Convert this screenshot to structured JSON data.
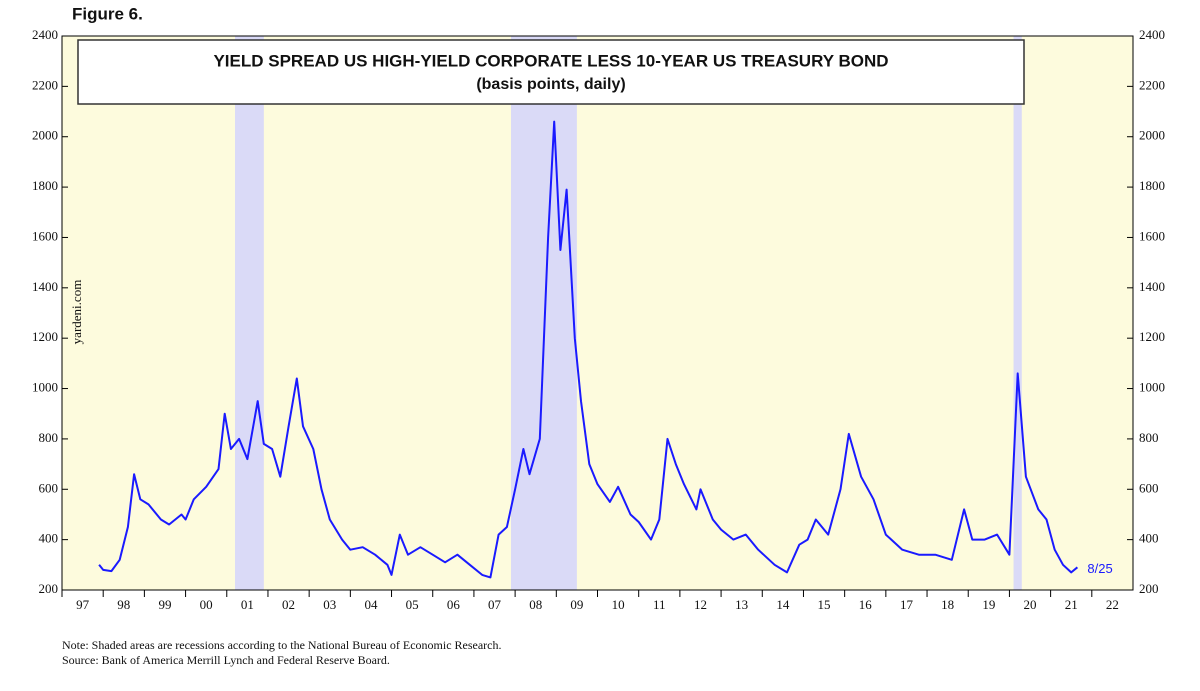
{
  "figure_label": "Figure 6.",
  "chart_data": {
    "type": "line",
    "title": "YIELD SPREAD US HIGH-YIELD CORPORATE LESS 10-YEAR US TREASURY BOND",
    "subtitle": "(basis points, daily)",
    "watermark": "yardeni.com",
    "annotation": "8/25",
    "x": [
      1997.9,
      1998.0,
      1998.2,
      1998.4,
      1998.6,
      1998.75,
      1998.9,
      1999.1,
      1999.4,
      1999.6,
      1999.9,
      2000.0,
      2000.2,
      2000.5,
      2000.8,
      2000.95,
      2001.1,
      2001.3,
      2001.5,
      2001.75,
      2001.9,
      2002.1,
      2002.3,
      2002.5,
      2002.7,
      2002.85,
      2003.1,
      2003.3,
      2003.5,
      2003.8,
      2004.0,
      2004.3,
      2004.6,
      2004.9,
      2005.0,
      2005.2,
      2005.4,
      2005.7,
      2006.0,
      2006.3,
      2006.6,
      2006.9,
      2007.2,
      2007.4,
      2007.6,
      2007.8,
      2008.0,
      2008.2,
      2008.35,
      2008.6,
      2008.8,
      2008.95,
      2009.1,
      2009.25,
      2009.45,
      2009.6,
      2009.8,
      2010.0,
      2010.3,
      2010.5,
      2010.8,
      2011.0,
      2011.3,
      2011.5,
      2011.7,
      2011.9,
      2012.1,
      2012.4,
      2012.5,
      2012.8,
      2013.0,
      2013.3,
      2013.6,
      2013.9,
      2014.3,
      2014.6,
      2014.9,
      2015.1,
      2015.3,
      2015.6,
      2015.9,
      2016.1,
      2016.4,
      2016.7,
      2017.0,
      2017.4,
      2017.8,
      2018.2,
      2018.6,
      2018.9,
      2019.1,
      2019.4,
      2019.7,
      2020.0,
      2020.2,
      2020.4,
      2020.7,
      2020.9,
      2021.1,
      2021.3,
      2021.5,
      2021.65
    ],
    "series": [
      {
        "name": "Yield spread",
        "color": "#1a1aff",
        "values": [
          300,
          280,
          275,
          320,
          450,
          660,
          560,
          540,
          480,
          460,
          500,
          480,
          560,
          610,
          680,
          900,
          760,
          800,
          720,
          950,
          780,
          760,
          650,
          850,
          1040,
          850,
          760,
          600,
          480,
          400,
          360,
          370,
          340,
          300,
          260,
          420,
          340,
          370,
          340,
          310,
          340,
          300,
          260,
          250,
          420,
          450,
          600,
          760,
          660,
          800,
          1600,
          2060,
          1550,
          1790,
          1200,
          950,
          700,
          620,
          550,
          610,
          500,
          470,
          400,
          480,
          800,
          700,
          620,
          520,
          600,
          480,
          440,
          400,
          420,
          360,
          300,
          270,
          380,
          400,
          480,
          420,
          600,
          820,
          650,
          560,
          420,
          360,
          340,
          340,
          320,
          520,
          400,
          400,
          420,
          340,
          1060,
          650,
          520,
          480,
          360,
          300,
          270,
          290
        ]
      }
    ],
    "recessions": [
      [
        2001.2,
        2001.9
      ],
      [
        2007.9,
        2009.5
      ],
      [
        2020.1,
        2020.3
      ]
    ],
    "recession_color": "#dadaf7",
    "background": "#fdfbdd",
    "xlim": [
      1997,
      2023
    ],
    "xticks": [
      {
        "value": 1997,
        "label": "97"
      },
      {
        "value": 1998,
        "label": "98"
      },
      {
        "value": 1999,
        "label": "99"
      },
      {
        "value": 2000,
        "label": "00"
      },
      {
        "value": 2001,
        "label": "01"
      },
      {
        "value": 2002,
        "label": "02"
      },
      {
        "value": 2003,
        "label": "03"
      },
      {
        "value": 2004,
        "label": "04"
      },
      {
        "value": 2005,
        "label": "05"
      },
      {
        "value": 2006,
        "label": "06"
      },
      {
        "value": 2007,
        "label": "07"
      },
      {
        "value": 2008,
        "label": "08"
      },
      {
        "value": 2009,
        "label": "09"
      },
      {
        "value": 2010,
        "label": "10"
      },
      {
        "value": 2011,
        "label": "11"
      },
      {
        "value": 2012,
        "label": "12"
      },
      {
        "value": 2013,
        "label": "13"
      },
      {
        "value": 2014,
        "label": "14"
      },
      {
        "value": 2015,
        "label": "15"
      },
      {
        "value": 2016,
        "label": "16"
      },
      {
        "value": 2017,
        "label": "17"
      },
      {
        "value": 2018,
        "label": "18"
      },
      {
        "value": 2019,
        "label": "19"
      },
      {
        "value": 2020,
        "label": "20"
      },
      {
        "value": 2021,
        "label": "21"
      },
      {
        "value": 2022,
        "label": "22"
      }
    ],
    "ylim": [
      200,
      2400
    ],
    "yticks": [
      200,
      400,
      600,
      800,
      1000,
      1200,
      1400,
      1600,
      1800,
      2000,
      2200,
      2400
    ],
    "notes": [
      "Note: Shaded areas are recessions according to the National Bureau of Economic Research.",
      "Source: Bank of America Merrill Lynch and Federal Reserve Board."
    ]
  }
}
